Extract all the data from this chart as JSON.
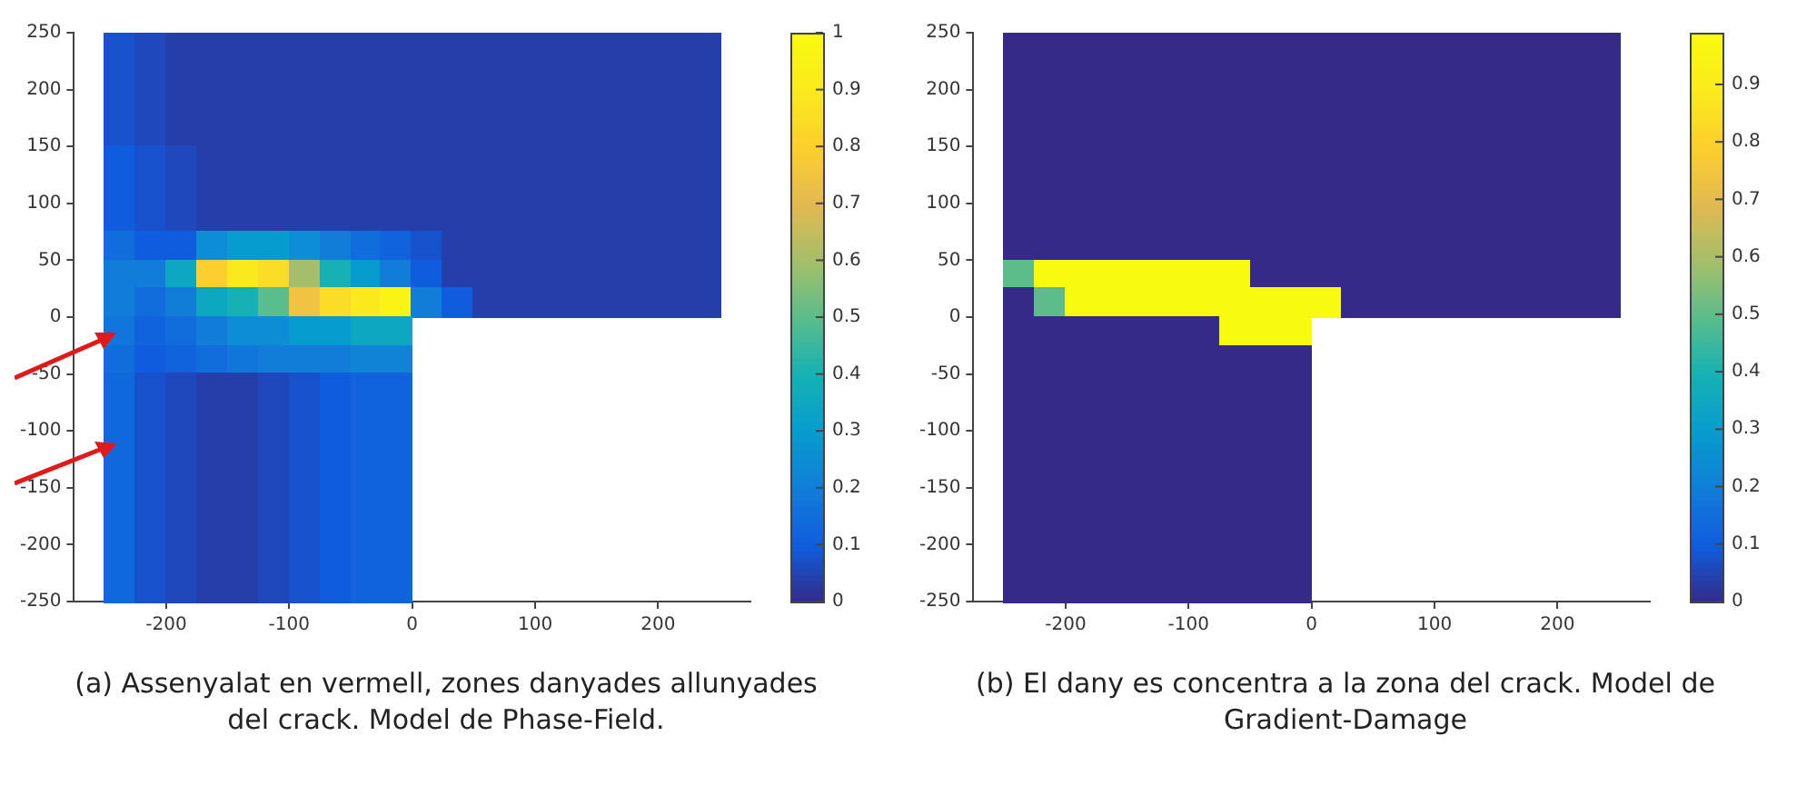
{
  "chart_data": [
    {
      "type": "heatmap",
      "xlim": [
        -275,
        275
      ],
      "ylim": [
        -250,
        250
      ],
      "xticks": [
        -200,
        -100,
        0,
        100,
        200
      ],
      "yticks": [
        -250,
        -200,
        -150,
        -100,
        -50,
        0,
        50,
        100,
        150,
        200,
        250
      ],
      "clim": [
        0,
        1
      ],
      "cticks": [
        0,
        0.1,
        0.2,
        0.3,
        0.4,
        0.5,
        0.6,
        0.7,
        0.8,
        0.9,
        1
      ],
      "annotations": [
        "(a) Assenyalat en vermell, zones danyades allunyades del crack. Model de Phase-Field."
      ],
      "cells": [
        [
          null,
          0.08,
          0.06,
          0.04,
          0.04,
          0.04,
          0.04,
          0.04,
          0.04,
          0.04,
          0.04,
          0.04,
          0.04,
          0.04,
          0.04,
          0.04,
          0.04,
          0.04,
          0.04,
          0.04,
          0.04,
          null
        ],
        [
          null,
          0.08,
          0.06,
          0.04,
          0.04,
          0.04,
          0.04,
          0.04,
          0.04,
          0.04,
          0.04,
          0.04,
          0.04,
          0.04,
          0.04,
          0.04,
          0.04,
          0.04,
          0.04,
          0.04,
          0.04,
          null
        ],
        [
          null,
          0.08,
          0.06,
          0.04,
          0.04,
          0.04,
          0.04,
          0.04,
          0.04,
          0.04,
          0.04,
          0.04,
          0.04,
          0.04,
          0.04,
          0.04,
          0.04,
          0.04,
          0.04,
          0.04,
          0.04,
          null
        ],
        [
          null,
          0.08,
          0.06,
          0.04,
          0.04,
          0.04,
          0.04,
          0.04,
          0.04,
          0.04,
          0.04,
          0.04,
          0.04,
          0.04,
          0.04,
          0.04,
          0.04,
          0.04,
          0.04,
          0.04,
          0.04,
          null
        ],
        [
          null,
          0.1,
          0.08,
          0.06,
          0.04,
          0.04,
          0.04,
          0.04,
          0.04,
          0.04,
          0.04,
          0.04,
          0.04,
          0.04,
          0.04,
          0.04,
          0.04,
          0.04,
          0.04,
          0.04,
          0.04,
          null
        ],
        [
          null,
          0.1,
          0.08,
          0.06,
          0.04,
          0.04,
          0.04,
          0.04,
          0.04,
          0.04,
          0.04,
          0.04,
          0.04,
          0.04,
          0.04,
          0.04,
          0.04,
          0.04,
          0.04,
          0.04,
          0.04,
          null
        ],
        [
          null,
          0.1,
          0.08,
          0.06,
          0.04,
          0.04,
          0.04,
          0.04,
          0.04,
          0.04,
          0.04,
          0.04,
          0.04,
          0.04,
          0.04,
          0.04,
          0.04,
          0.04,
          0.04,
          0.04,
          0.04,
          null
        ],
        [
          null,
          0.15,
          0.1,
          0.1,
          0.25,
          0.3,
          0.3,
          0.25,
          0.2,
          0.15,
          0.12,
          0.08,
          0.04,
          0.04,
          0.04,
          0.04,
          0.04,
          0.04,
          0.04,
          0.04,
          0.04,
          null
        ],
        [
          null,
          0.2,
          0.2,
          0.35,
          0.8,
          0.9,
          0.85,
          0.6,
          0.4,
          0.3,
          0.2,
          0.1,
          0.04,
          0.04,
          0.04,
          0.04,
          0.04,
          0.04,
          0.04,
          0.04,
          0.04,
          null
        ],
        [
          null,
          0.2,
          0.15,
          0.2,
          0.35,
          0.4,
          0.5,
          0.75,
          0.85,
          0.9,
          0.95,
          0.2,
          0.1,
          0.04,
          0.04,
          0.04,
          0.04,
          0.04,
          0.04,
          0.04,
          0.04,
          null
        ],
        [
          null,
          0.18,
          0.12,
          0.15,
          0.2,
          0.25,
          0.25,
          0.3,
          0.3,
          0.35,
          0.35,
          null,
          null,
          null,
          null,
          null,
          null,
          null,
          null,
          null,
          null,
          null
        ],
        [
          null,
          0.15,
          0.1,
          0.12,
          0.15,
          0.18,
          0.2,
          0.2,
          0.2,
          0.22,
          0.22,
          null,
          null,
          null,
          null,
          null,
          null,
          null,
          null,
          null,
          null,
          null
        ],
        [
          null,
          0.14,
          0.08,
          0.06,
          0.04,
          0.04,
          0.06,
          0.08,
          0.1,
          0.12,
          0.12,
          null,
          null,
          null,
          null,
          null,
          null,
          null,
          null,
          null,
          null,
          null
        ],
        [
          null,
          0.14,
          0.08,
          0.06,
          0.04,
          0.04,
          0.06,
          0.08,
          0.1,
          0.12,
          0.12,
          null,
          null,
          null,
          null,
          null,
          null,
          null,
          null,
          null,
          null,
          null
        ],
        [
          null,
          0.14,
          0.08,
          0.06,
          0.04,
          0.04,
          0.06,
          0.08,
          0.1,
          0.12,
          0.12,
          null,
          null,
          null,
          null,
          null,
          null,
          null,
          null,
          null,
          null,
          null
        ],
        [
          null,
          0.14,
          0.08,
          0.06,
          0.04,
          0.04,
          0.06,
          0.08,
          0.1,
          0.12,
          0.12,
          null,
          null,
          null,
          null,
          null,
          null,
          null,
          null,
          null,
          null,
          null
        ],
        [
          null,
          0.14,
          0.08,
          0.06,
          0.04,
          0.04,
          0.06,
          0.08,
          0.1,
          0.12,
          0.12,
          null,
          null,
          null,
          null,
          null,
          null,
          null,
          null,
          null,
          null,
          null
        ],
        [
          null,
          0.14,
          0.08,
          0.06,
          0.04,
          0.04,
          0.06,
          0.08,
          0.1,
          0.12,
          0.12,
          null,
          null,
          null,
          null,
          null,
          null,
          null,
          null,
          null,
          null,
          null
        ],
        [
          null,
          0.14,
          0.08,
          0.06,
          0.04,
          0.04,
          0.06,
          0.08,
          0.1,
          0.12,
          0.12,
          null,
          null,
          null,
          null,
          null,
          null,
          null,
          null,
          null,
          null,
          null
        ],
        [
          null,
          0.14,
          0.08,
          0.06,
          0.04,
          0.04,
          0.06,
          0.08,
          0.1,
          0.12,
          0.12,
          null,
          null,
          null,
          null,
          null,
          null,
          null,
          null,
          null,
          null,
          null
        ]
      ]
    },
    {
      "type": "heatmap",
      "xlim": [
        -275,
        275
      ],
      "ylim": [
        -250,
        250
      ],
      "xticks": [
        -200,
        -100,
        0,
        100,
        200
      ],
      "yticks": [
        -250,
        -200,
        -150,
        -100,
        -50,
        0,
        50,
        100,
        150,
        200,
        250
      ],
      "clim": [
        0,
        0.99
      ],
      "cticks": [
        0,
        0.1,
        0.2,
        0.3,
        0.4,
        0.5,
        0.6,
        0.7,
        0.8,
        0.9
      ],
      "annotations": [
        "(b) El dany es concentra a la zona del crack. Model de Gradient-Damage"
      ],
      "cells": [
        [
          null,
          0,
          0,
          0,
          0,
          0,
          0,
          0,
          0,
          0,
          0,
          0,
          0,
          0,
          0,
          0,
          0,
          0,
          0,
          0,
          0,
          null
        ],
        [
          null,
          0,
          0,
          0,
          0,
          0,
          0,
          0,
          0,
          0,
          0,
          0,
          0,
          0,
          0,
          0,
          0,
          0,
          0,
          0,
          0,
          null
        ],
        [
          null,
          0,
          0,
          0,
          0,
          0,
          0,
          0,
          0,
          0,
          0,
          0,
          0,
          0,
          0,
          0,
          0,
          0,
          0,
          0,
          0,
          null
        ],
        [
          null,
          0,
          0,
          0,
          0,
          0,
          0,
          0,
          0,
          0,
          0,
          0,
          0,
          0,
          0,
          0,
          0,
          0,
          0,
          0,
          0,
          null
        ],
        [
          null,
          0,
          0,
          0,
          0,
          0,
          0,
          0,
          0,
          0,
          0,
          0,
          0,
          0,
          0,
          0,
          0,
          0,
          0,
          0,
          0,
          null
        ],
        [
          null,
          0,
          0,
          0,
          0,
          0,
          0,
          0,
          0,
          0,
          0,
          0,
          0,
          0,
          0,
          0,
          0,
          0,
          0,
          0,
          0,
          null
        ],
        [
          null,
          0,
          0,
          0,
          0,
          0,
          0,
          0,
          0,
          0,
          0,
          0,
          0,
          0,
          0,
          0,
          0,
          0,
          0,
          0,
          0,
          null
        ],
        [
          null,
          0,
          0,
          0,
          0,
          0,
          0,
          0,
          0,
          0,
          0,
          0,
          0,
          0,
          0,
          0,
          0,
          0,
          0,
          0,
          0,
          null
        ],
        [
          null,
          0.5,
          0.99,
          0.99,
          0.99,
          0.99,
          0.99,
          0.99,
          0.99,
          0,
          0,
          0,
          0,
          0,
          0,
          0,
          0,
          0,
          0,
          0,
          0,
          null
        ],
        [
          null,
          0,
          0.5,
          0.99,
          0.99,
          0.99,
          0.99,
          0.99,
          0.99,
          0.99,
          0.99,
          0.99,
          0,
          0,
          0,
          0,
          0,
          0,
          0,
          0,
          0,
          null
        ],
        [
          null,
          0,
          0,
          0,
          0,
          0,
          0,
          0,
          0.99,
          0.99,
          0.99,
          null,
          null,
          null,
          null,
          null,
          null,
          null,
          null,
          null,
          null,
          null
        ],
        [
          null,
          0,
          0,
          0,
          0,
          0,
          0,
          0,
          0,
          0,
          0,
          null,
          null,
          null,
          null,
          null,
          null,
          null,
          null,
          null,
          null,
          null
        ],
        [
          null,
          0,
          0,
          0,
          0,
          0,
          0,
          0,
          0,
          0,
          0,
          null,
          null,
          null,
          null,
          null,
          null,
          null,
          null,
          null,
          null,
          null
        ],
        [
          null,
          0,
          0,
          0,
          0,
          0,
          0,
          0,
          0,
          0,
          0,
          null,
          null,
          null,
          null,
          null,
          null,
          null,
          null,
          null,
          null,
          null
        ],
        [
          null,
          0,
          0,
          0,
          0,
          0,
          0,
          0,
          0,
          0,
          0,
          null,
          null,
          null,
          null,
          null,
          null,
          null,
          null,
          null,
          null,
          null
        ],
        [
          null,
          0,
          0,
          0,
          0,
          0,
          0,
          0,
          0,
          0,
          0,
          null,
          null,
          null,
          null,
          null,
          null,
          null,
          null,
          null,
          null,
          null
        ],
        [
          null,
          0,
          0,
          0,
          0,
          0,
          0,
          0,
          0,
          0,
          0,
          null,
          null,
          null,
          null,
          null,
          null,
          null,
          null,
          null,
          null,
          null
        ],
        [
          null,
          0,
          0,
          0,
          0,
          0,
          0,
          0,
          0,
          0,
          0,
          null,
          null,
          null,
          null,
          null,
          null,
          null,
          null,
          null,
          null,
          null
        ],
        [
          null,
          0,
          0,
          0,
          0,
          0,
          0,
          0,
          0,
          0,
          0,
          null,
          null,
          null,
          null,
          null,
          null,
          null,
          null,
          null,
          null,
          null
        ],
        [
          null,
          0,
          0,
          0,
          0,
          0,
          0,
          0,
          0,
          0,
          0,
          null,
          null,
          null,
          null,
          null,
          null,
          null,
          null,
          null,
          null,
          null
        ]
      ]
    }
  ]
}
